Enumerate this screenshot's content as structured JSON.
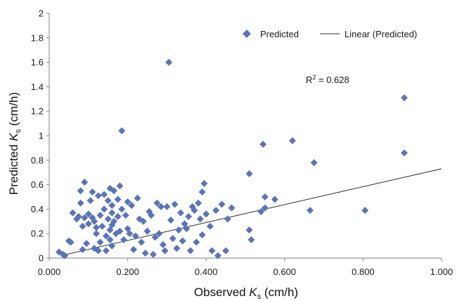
{
  "chart_data": {
    "type": "scatter",
    "title": "",
    "xlabel": {
      "prefix": "Observed ",
      "symbol": "K",
      "subscript": "s",
      "suffix": "  (cm/h)"
    },
    "ylabel": {
      "prefix": "Predicted ",
      "symbol": "K",
      "subscript": "s",
      "suffix": "  (cm/h)"
    },
    "xlim": [
      0,
      1
    ],
    "ylim": [
      0,
      2
    ],
    "x_ticks": [
      "0.000",
      "0.200",
      "0.400",
      "0.600",
      "0.800",
      "1.000"
    ],
    "y_ticks": [
      "0",
      "0.2",
      "0.4",
      "0.6",
      "0.8",
      "1",
      "1.2",
      "1.4",
      "1.6",
      "1.8",
      "2"
    ],
    "grid": false,
    "legend_position": "top-right",
    "legend": {
      "marker_label": "Predicted",
      "line_label": "Linear (Predicted)"
    },
    "annotation": {
      "prefix": "R",
      "superscript": "2",
      "suffix": " = 0.628"
    },
    "colors": {
      "marker": "#5b74b8",
      "line": "#2a2a2a",
      "axis": "#7f7f7f"
    },
    "trendline": {
      "x": [
        0.03,
        1.0
      ],
      "y": [
        0.02,
        0.73
      ]
    },
    "series": [
      {
        "name": "Predicted",
        "points": [
          [
            0.025,
            0.05
          ],
          [
            0.035,
            0.03
          ],
          [
            0.04,
            0.02
          ],
          [
            0.05,
            0.14
          ],
          [
            0.055,
            0.13
          ],
          [
            0.06,
            0.37
          ],
          [
            0.07,
            0.32
          ],
          [
            0.075,
            0.34
          ],
          [
            0.08,
            0.45
          ],
          [
            0.08,
            0.55
          ],
          [
            0.085,
            0.26
          ],
          [
            0.09,
            0.33
          ],
          [
            0.09,
            0.62
          ],
          [
            0.085,
            0.07
          ],
          [
            0.095,
            0.12
          ],
          [
            0.1,
            0.28
          ],
          [
            0.1,
            0.36
          ],
          [
            0.105,
            0.47
          ],
          [
            0.11,
            0.33
          ],
          [
            0.11,
            0.54
          ],
          [
            0.115,
            0.3
          ],
          [
            0.12,
            0.25
          ],
          [
            0.12,
            0.2
          ],
          [
            0.115,
            0.08
          ],
          [
            0.125,
            0.51
          ],
          [
            0.125,
            0.06
          ],
          [
            0.13,
            0.35
          ],
          [
            0.13,
            0.13
          ],
          [
            0.135,
            0.26
          ],
          [
            0.14,
            0.52
          ],
          [
            0.14,
            0.4
          ],
          [
            0.145,
            0.18
          ],
          [
            0.145,
            0.06
          ],
          [
            0.15,
            0.32
          ],
          [
            0.15,
            0.47
          ],
          [
            0.155,
            0.57
          ],
          [
            0.155,
            0.23
          ],
          [
            0.155,
            0.15
          ],
          [
            0.16,
            0.43
          ],
          [
            0.16,
            0.37
          ],
          [
            0.16,
            0.27
          ],
          [
            0.16,
            0.1
          ],
          [
            0.165,
            0.55
          ],
          [
            0.165,
            0.3
          ],
          [
            0.17,
            0.2
          ],
          [
            0.175,
            0.48
          ],
          [
            0.175,
            0.34
          ],
          [
            0.18,
            0.59
          ],
          [
            0.18,
            0.22
          ],
          [
            0.185,
            0.4
          ],
          [
            0.185,
            1.04
          ],
          [
            0.19,
            0.15
          ],
          [
            0.195,
            0.35
          ],
          [
            0.2,
            0.46
          ],
          [
            0.2,
            0.24
          ],
          [
            0.205,
            0.2
          ],
          [
            0.21,
            0.43
          ],
          [
            0.215,
            0.07
          ],
          [
            0.22,
            0.18
          ],
          [
            0.225,
            0.49
          ],
          [
            0.23,
            0.32
          ],
          [
            0.235,
            0.13
          ],
          [
            0.24,
            0.3
          ],
          [
            0.245,
            0.04
          ],
          [
            0.25,
            0.22
          ],
          [
            0.255,
            0.38
          ],
          [
            0.26,
            0.35
          ],
          [
            0.265,
            0.03
          ],
          [
            0.27,
            0.17
          ],
          [
            0.275,
            0.45
          ],
          [
            0.28,
            0.2
          ],
          [
            0.285,
            0.42
          ],
          [
            0.29,
            0.11
          ],
          [
            0.295,
            0.06
          ],
          [
            0.3,
            0.42
          ],
          [
            0.305,
            1.6
          ],
          [
            0.31,
            0.31
          ],
          [
            0.315,
            0.16
          ],
          [
            0.32,
            0.44
          ],
          [
            0.325,
            0.08
          ],
          [
            0.33,
            0.23
          ],
          [
            0.335,
            0.37
          ],
          [
            0.34,
            0.14
          ],
          [
            0.345,
            0.28
          ],
          [
            0.35,
            0.24
          ],
          [
            0.355,
            0.34
          ],
          [
            0.36,
            0.06
          ],
          [
            0.365,
            0.42
          ],
          [
            0.37,
            0.39
          ],
          [
            0.375,
            0.13
          ],
          [
            0.38,
            0.45
          ],
          [
            0.385,
            0.32
          ],
          [
            0.39,
            0.54
          ],
          [
            0.39,
            0.19
          ],
          [
            0.395,
            0.61
          ],
          [
            0.4,
            0.36
          ],
          [
            0.41,
            0.26
          ],
          [
            0.415,
            0.06
          ],
          [
            0.425,
            0.39
          ],
          [
            0.43,
            0.02
          ],
          [
            0.44,
            0.44
          ],
          [
            0.45,
            0.06
          ],
          [
            0.455,
            0.32
          ],
          [
            0.465,
            0.41
          ],
          [
            0.51,
            0.69
          ],
          [
            0.51,
            0.23
          ],
          [
            0.515,
            0.15
          ],
          [
            0.54,
            0.38
          ],
          [
            0.545,
            0.93
          ],
          [
            0.55,
            0.5
          ],
          [
            0.55,
            0.41
          ],
          [
            0.575,
            0.48
          ],
          [
            0.62,
            0.96
          ],
          [
            0.665,
            0.39
          ],
          [
            0.675,
            0.78
          ],
          [
            0.805,
            0.39
          ],
          [
            0.905,
            1.31
          ],
          [
            0.905,
            0.86
          ]
        ]
      }
    ]
  }
}
